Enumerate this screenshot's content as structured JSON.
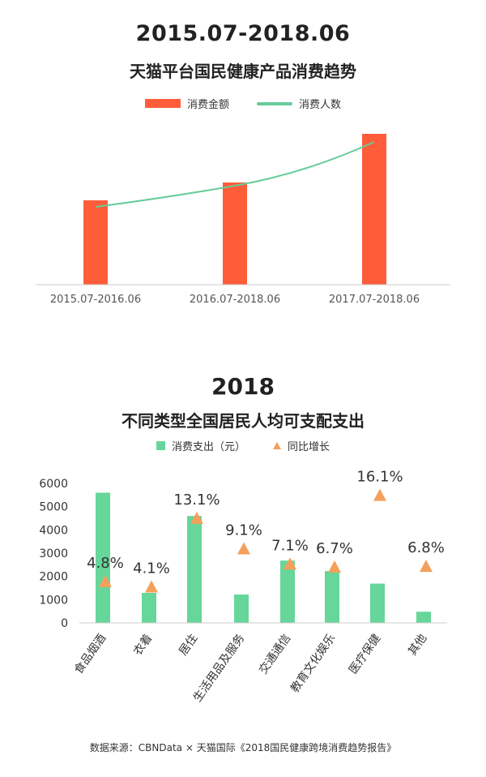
{
  "chart_data": [
    {
      "type": "bar+line",
      "title": "2015.07-2018.06",
      "subtitle": "天猫平台国民健康产品消费趋势",
      "categories": [
        "2015.07-2016.06",
        "2016.07-2018.06",
        "2017.07-2018.06"
      ],
      "series": [
        {
          "name": "消费金额",
          "kind": "bar",
          "color": "#FF5C3A",
          "values": [
            52,
            63,
            93
          ]
        },
        {
          "name": "消费人数",
          "kind": "line",
          "color": "#66CC99",
          "values": [
            48,
            61,
            88
          ]
        }
      ],
      "ylim": [
        0,
        100
      ],
      "legend": "top-center",
      "grid": false
    },
    {
      "type": "bar+scatter",
      "title": "2018",
      "subtitle": "不同类型全国居民人均可支配支出",
      "categories": [
        "食品烟酒",
        "衣着",
        "居住",
        "生活用品及服务",
        "交通通信",
        "教育文化娱乐",
        "医疗保健",
        "其他"
      ],
      "series": [
        {
          "name": "消费支出（元）",
          "kind": "bar",
          "color": "#66D69A",
          "values": [
            5600,
            1290,
            4600,
            1220,
            2680,
            2230,
            1690,
            480
          ]
        },
        {
          "name": "同比增长",
          "kind": "marker",
          "color": "#F4A05C",
          "values": [
            4.8,
            4.1,
            13.1,
            9.1,
            7.1,
            6.7,
            16.1,
            6.8
          ],
          "labels": [
            "4.8%",
            "4.1%",
            "13.1%",
            "9.1%",
            "7.1%",
            "6.7%",
            "16.1%",
            "6.8%"
          ]
        }
      ],
      "yticks": [
        "0",
        "1000",
        "2000",
        "3000",
        "4000",
        "5000",
        "6000"
      ],
      "ylim": [
        0,
        6000
      ],
      "legend": "top-center",
      "grid": false
    }
  ],
  "source": "数据来源：CBNData × 天猫国际《2018国民健康跨境消费趋势报告》"
}
